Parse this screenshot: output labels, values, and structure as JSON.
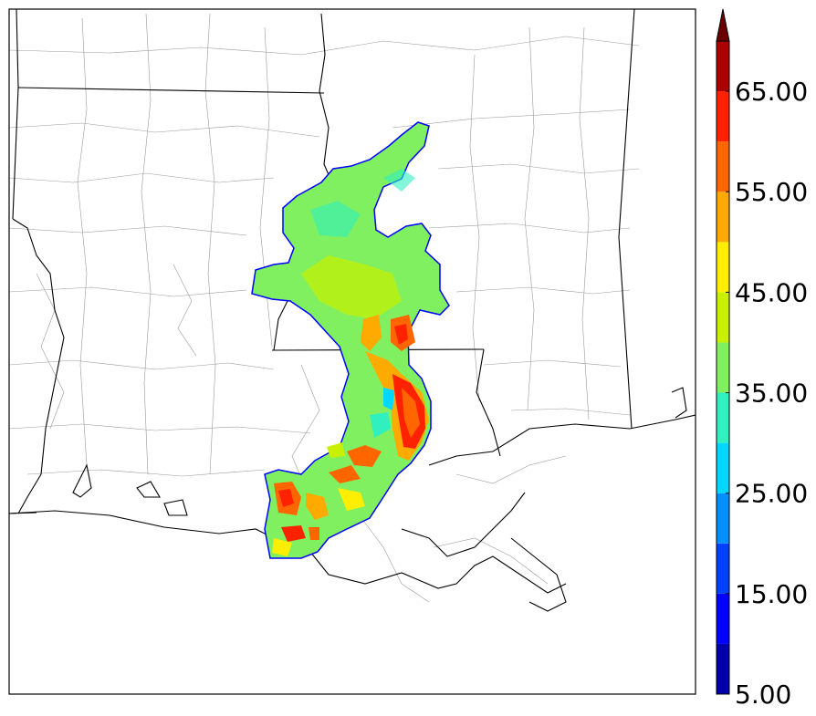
{
  "colorbar": {
    "levels": [
      5,
      10,
      15,
      20,
      25,
      30,
      35,
      40,
      45,
      50,
      55,
      60,
      65,
      70
    ],
    "colors": [
      "#0000aa",
      "#0000ff",
      "#0040ff",
      "#0090ff",
      "#00d8ff",
      "#30f0c0",
      "#80f060",
      "#c8f000",
      "#ffee00",
      "#ffaa00",
      "#ff6600",
      "#ff2200",
      "#aa0000"
    ],
    "extend_color": "#6a0000",
    "tick_labels": [
      "5.00",
      "15.00",
      "25.00",
      "35.00",
      "45.00",
      "55.00",
      "65.00"
    ]
  }
}
